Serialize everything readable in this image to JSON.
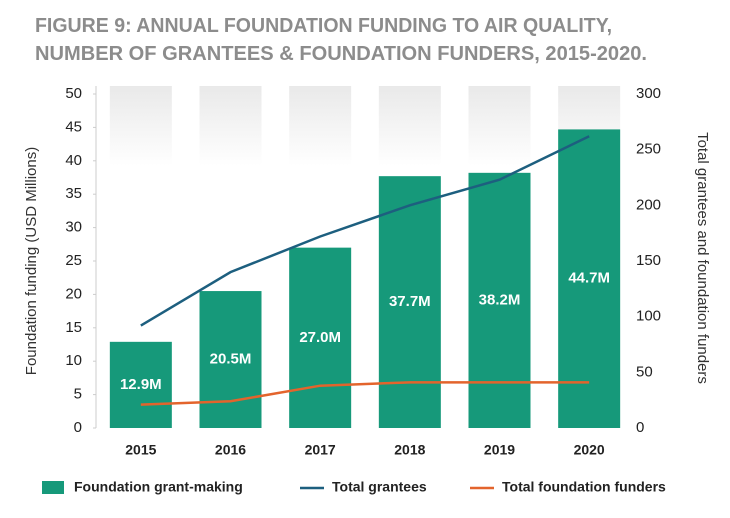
{
  "chart_data": {
    "type": "bar",
    "title": [
      "FIGURE 9: ANNUAL FOUNDATION FUNDING TO AIR QUALITY,",
      "NUMBER OF GRANTEES & FOUNDATION FUNDERS, 2015-2020."
    ],
    "y_label": "Foundation funding (USD Millions)",
    "y2_label": "Total grantees and foundation funders",
    "categories": [
      "2015",
      "2016",
      "2017",
      "2018",
      "2019",
      "2020"
    ],
    "series": [
      {
        "name": "Foundation grant-making",
        "type": "bar",
        "color": "#16997a",
        "values": [
          12.9,
          20.5,
          27.0,
          37.7,
          38.2,
          44.7
        ],
        "value_labels": [
          "12.9M",
          "20.5M",
          "27.0M",
          "37.7M",
          "38.2M",
          "44.7M"
        ]
      },
      {
        "name": "Total grantees",
        "type": "line",
        "axis": "y2",
        "color": "#1d5f7f",
        "values": [
          92,
          140,
          172,
          200,
          223,
          262
        ]
      },
      {
        "name": "Total foundation funders",
        "type": "line",
        "axis": "y2",
        "color": "#e3642c",
        "values": [
          21,
          24,
          38,
          41,
          41,
          41
        ]
      }
    ],
    "ylim": [
      0,
      50
    ],
    "yticks": [
      0,
      5,
      10,
      15,
      20,
      25,
      30,
      35,
      40,
      45,
      50
    ],
    "y2lim": [
      0,
      300
    ],
    "y2ticks": [
      0,
      50,
      100,
      150,
      200,
      250,
      300
    ],
    "grid": false
  }
}
